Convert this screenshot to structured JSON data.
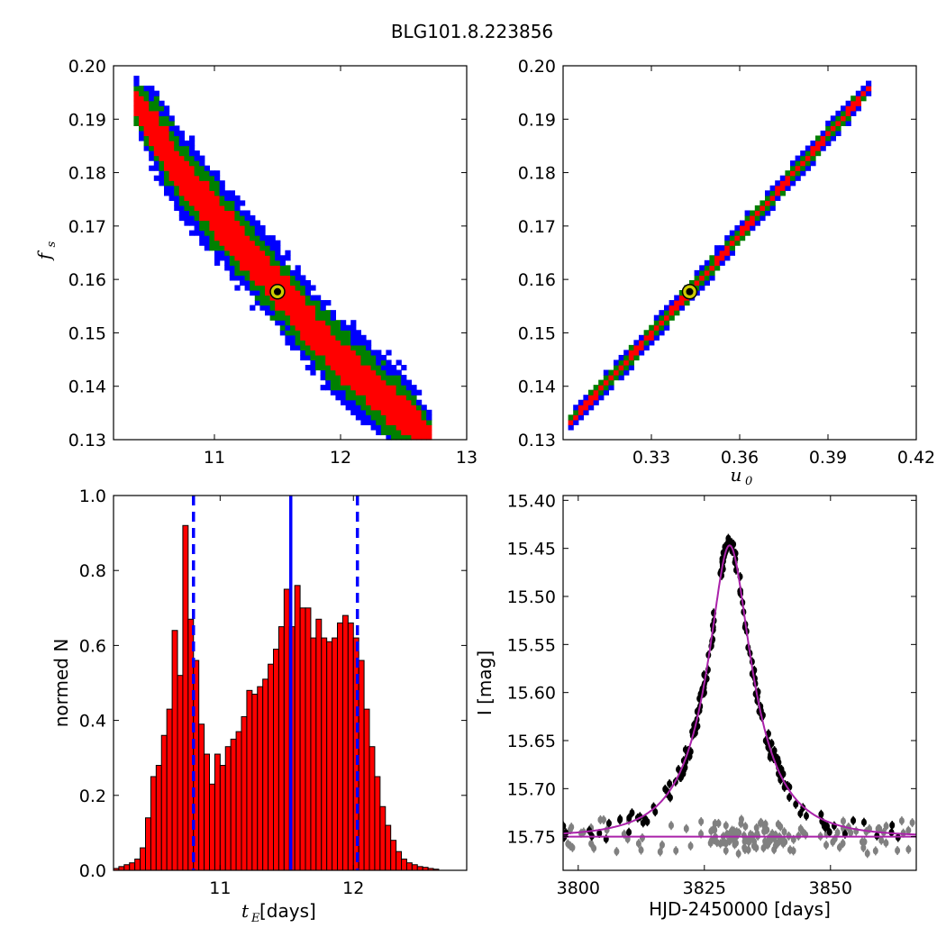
{
  "figure": {
    "title": "BLG101.8.223856"
  },
  "chart_data": [
    {
      "id": "fs_vs_tE",
      "type": "heatmap",
      "xlim": [
        10.2,
        13.0
      ],
      "ylim": [
        0.13,
        0.2
      ],
      "xticks": [
        11,
        12,
        13
      ],
      "yticks": [
        0.13,
        0.14,
        0.15,
        0.16,
        0.17,
        0.18,
        0.19,
        0.2
      ],
      "xlabel": "",
      "ylabel_main": "f",
      "ylabel_sub": "s",
      "levels": [
        {
          "name": "outer",
          "color": "#0000ff",
          "halfwidth": 0.0078
        },
        {
          "name": "middle",
          "color": "#008000",
          "halfwidth": 0.0058
        },
        {
          "name": "inner",
          "color": "#ff0000",
          "halfwidth": 0.0036
        }
      ],
      "ridge": [
        [
          10.35,
          0.1945
        ],
        [
          10.75,
          0.1795
        ],
        [
          11.1,
          0.1695
        ],
        [
          11.5,
          0.1585
        ],
        [
          11.9,
          0.1475
        ],
        [
          12.3,
          0.1385
        ],
        [
          12.7,
          0.131
        ]
      ],
      "best_fit": [
        11.5,
        0.1577
      ],
      "marker_color": "#cccc00"
    },
    {
      "id": "fs_vs_u0",
      "type": "heatmap",
      "xlim": [
        0.3,
        0.42
      ],
      "ylim": [
        0.13,
        0.2
      ],
      "xticks": [
        0.33,
        0.36,
        0.39,
        0.42
      ],
      "yticks": [
        0.13,
        0.14,
        0.15,
        0.16,
        0.17,
        0.18,
        0.19,
        0.2
      ],
      "xlabel_main": "u",
      "xlabel_sub": "0",
      "levels": [
        {
          "name": "outer",
          "color": "#0000ff",
          "halfwidth": 0.0021
        },
        {
          "name": "middle",
          "color": "#008000",
          "halfwidth": 0.0014
        },
        {
          "name": "inner",
          "color": "#ff0000",
          "halfwidth": 0.0007
        }
      ],
      "ridge": [
        [
          0.301,
          0.1325
        ],
        [
          0.343,
          0.1577
        ],
        [
          0.372,
          0.176
        ],
        [
          0.405,
          0.1965
        ]
      ],
      "best_fit": [
        0.343,
        0.1577
      ],
      "marker_color": "#cccc00"
    },
    {
      "id": "tE_histogram",
      "type": "bar",
      "xlim": [
        10.2,
        12.85
      ],
      "ylim": [
        0.0,
        1.0
      ],
      "xticks": [
        11,
        12
      ],
      "yticks": [
        0.0,
        0.2,
        0.4,
        0.6,
        0.8,
        1.0
      ],
      "xlabel_main": "t",
      "xlabel_sub": "E",
      "xlabel_rest": " [days]",
      "ylabel": "normed N",
      "bin_start": 10.2,
      "bin_width": 0.04,
      "values": [
        0.005,
        0.01,
        0.015,
        0.02,
        0.03,
        0.06,
        0.14,
        0.25,
        0.28,
        0.36,
        0.43,
        0.64,
        0.52,
        0.92,
        0.67,
        0.56,
        0.39,
        0.31,
        0.23,
        0.31,
        0.28,
        0.33,
        0.35,
        0.37,
        0.41,
        0.48,
        0.47,
        0.49,
        0.51,
        0.55,
        0.59,
        0.65,
        0.75,
        0.65,
        0.76,
        0.7,
        0.7,
        0.62,
        0.67,
        0.62,
        0.61,
        0.62,
        0.66,
        0.68,
        0.66,
        0.62,
        0.56,
        0.43,
        0.33,
        0.25,
        0.17,
        0.12,
        0.08,
        0.05,
        0.03,
        0.02,
        0.015,
        0.01,
        0.008,
        0.005,
        0.003
      ],
      "bar_color": "#ff0000",
      "median_line": 11.53,
      "percentile_lines": [
        10.8,
        12.03
      ],
      "line_color": "#0000ff"
    },
    {
      "id": "light_curve",
      "type": "scatter",
      "xlim": [
        3797,
        3867
      ],
      "ylim": [
        15.785,
        15.395
      ],
      "xticks": [
        3800,
        3825,
        3850
      ],
      "yticks": [
        15.4,
        15.45,
        15.5,
        15.55,
        15.6,
        15.65,
        15.7,
        15.75
      ],
      "ytick_labels": [
        "15.40",
        "15.45",
        "15.50",
        "15.55",
        "15.60",
        "15.65",
        "15.70",
        "15.75"
      ],
      "xlabel": "HJD-2450000 [days]",
      "ylabel": "I [mag]",
      "model": {
        "t0": 3830.0,
        "tE": 11.5,
        "u0": 0.343,
        "fs": 0.1577,
        "base_mag": 15.75,
        "color": "#aa22aa"
      },
      "baseline_line": 15.75,
      "series": [
        {
          "name": "",
          "color": "#000000"
        },
        {
          "name": "",
          "color": "#808080"
        }
      ]
    }
  ]
}
